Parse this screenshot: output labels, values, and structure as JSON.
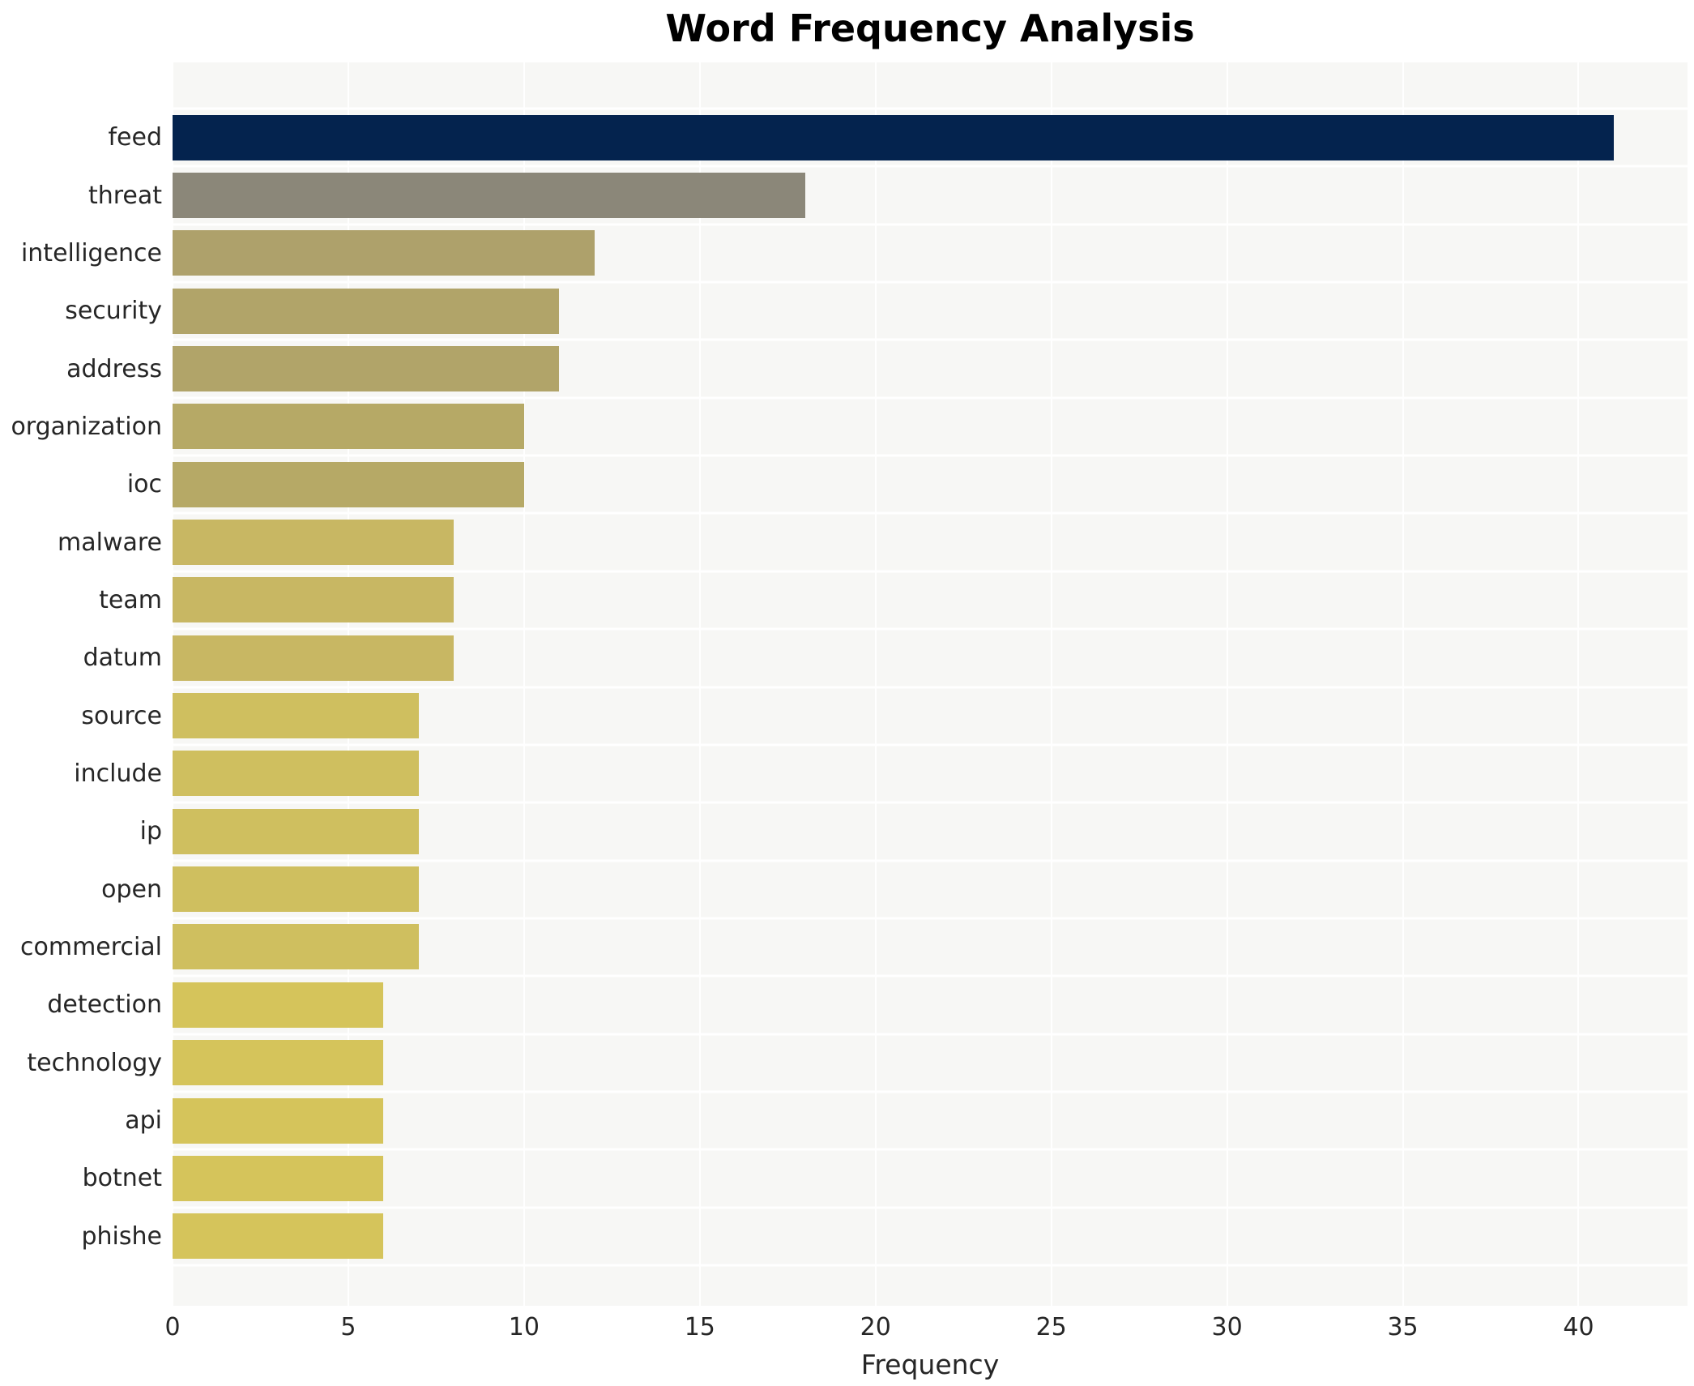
{
  "title": "Word Frequency Analysis",
  "chart_data": {
    "type": "bar",
    "orientation": "horizontal",
    "title": "Word Frequency Analysis",
    "xlabel": "Frequency",
    "ylabel": "",
    "categories": [
      "feed",
      "threat",
      "intelligence",
      "security",
      "address",
      "organization",
      "ioc",
      "malware",
      "team",
      "datum",
      "source",
      "include",
      "ip",
      "open",
      "commercial",
      "detection",
      "technology",
      "api",
      "botnet",
      "phishe"
    ],
    "values": [
      41,
      18,
      12,
      11,
      11,
      10,
      10,
      8,
      8,
      8,
      7,
      7,
      7,
      7,
      7,
      6,
      6,
      6,
      6,
      6
    ],
    "bar_colors": [
      "#04234e",
      "#8b8779",
      "#aea16b",
      "#b1a469",
      "#b1a469",
      "#b6a966",
      "#b6a966",
      "#c8b763",
      "#c8b763",
      "#c8b763",
      "#cfbf5f",
      "#cfbf5f",
      "#cfbf5f",
      "#cfbf5f",
      "#cfbf5f",
      "#d5c45b",
      "#d5c45b",
      "#d5c45b",
      "#d5c45b",
      "#d5c45b"
    ],
    "xticks": [
      0,
      5,
      10,
      15,
      20,
      25,
      30,
      35,
      40
    ],
    "xlim": [
      0,
      43.1
    ],
    "grid": true,
    "legend_position": "none",
    "plot_bg_color": "#f7f7f5",
    "grid_color": "#ffffff",
    "text_color": "#262626"
  }
}
